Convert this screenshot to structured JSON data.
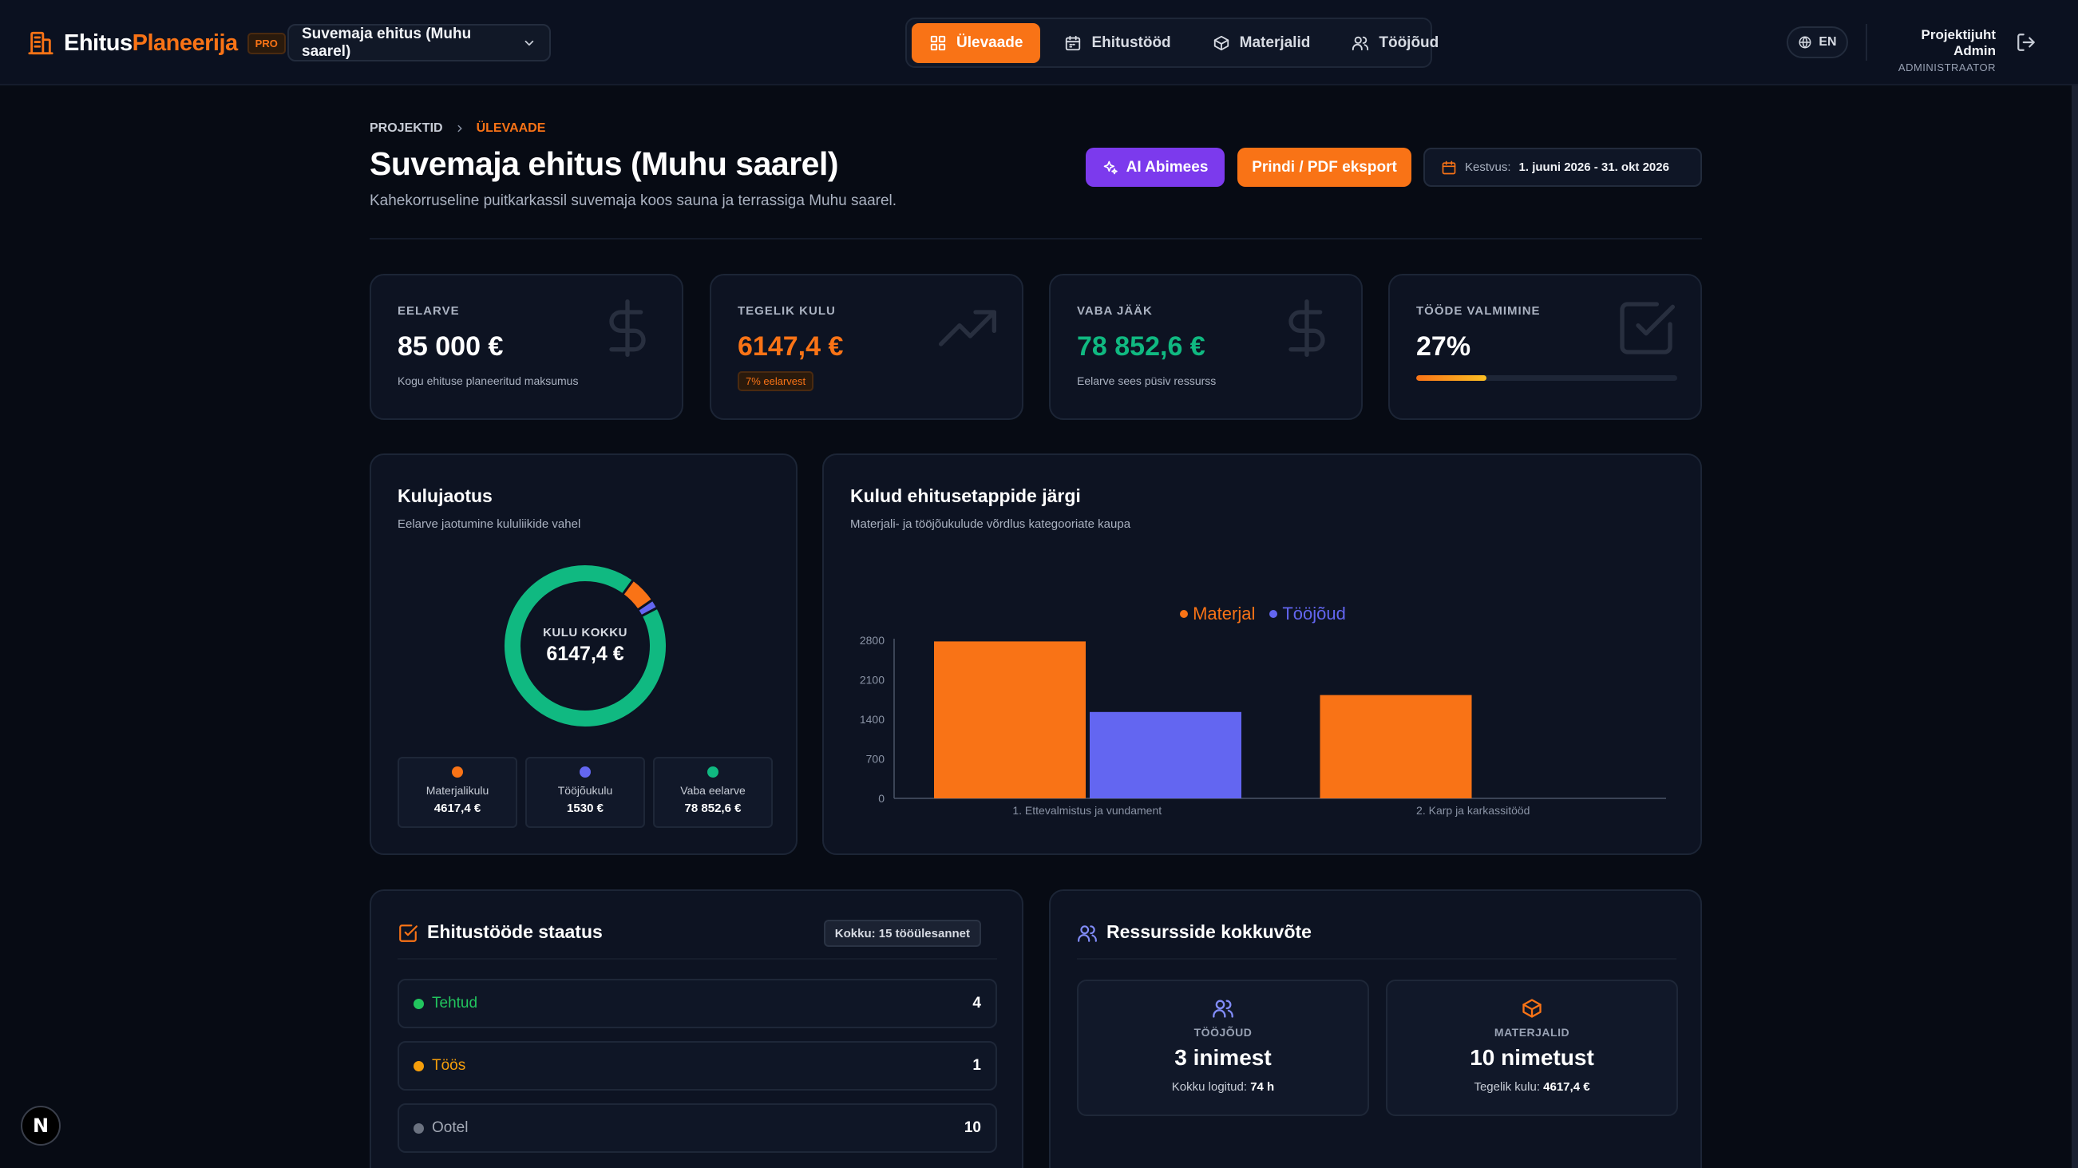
{
  "app": {
    "brand_part1": "Ehitus",
    "brand_part2": "Planeerija",
    "badge": "PRO",
    "project_selector": "Suvemaja ehitus (Muhu saarel)"
  },
  "nav": {
    "items": [
      {
        "label": "Ülevaade",
        "icon": "dashboard-grid-icon",
        "active": true
      },
      {
        "label": "Ehitustööd",
        "icon": "calendar-icon",
        "active": false
      },
      {
        "label": "Materjalid",
        "icon": "box-icon",
        "active": false
      },
      {
        "label": "Tööjõud",
        "icon": "users-icon",
        "active": false
      }
    ]
  },
  "header": {
    "language": "EN",
    "user_name": "Projektijuht Admin",
    "user_role": "ADMINISTRAATOR"
  },
  "page": {
    "breadcrumb_root": "PROJEKTID",
    "breadcrumb_current": "ÜLEVAADE",
    "title": "Suvemaja ehitus (Muhu saarel)",
    "subtitle": "Kahekorruseline puitkarkassil suvemaja koos sauna ja terrassiga Muhu saarel.",
    "ai_button": "AI Abimees",
    "pdf_button": "Prindi / PDF eksport",
    "duration_label": "Kestvus:",
    "duration_value": "1. juuni 2026 - 31. okt 2026"
  },
  "stats": {
    "budget": {
      "label": "EELARVE",
      "value": "85 000 €",
      "desc": "Kogu ehituse planeeritud maksumus"
    },
    "actual": {
      "label": "TEGELIK KULU",
      "value": "6147,4 €",
      "badge": "7% eelarvest"
    },
    "remaining": {
      "label": "VABA JÄÄK",
      "value": "78 852,6 €",
      "desc": "Eelarve sees püsiv ressurss"
    },
    "completion": {
      "label": "TÖÖDE VALMIMINE",
      "value": "27%",
      "progress": 0.27
    }
  },
  "cost_split": {
    "title": "Kulujaotus",
    "subtitle": "Eelarve jaotumine kululiikide vahel",
    "center_label": "KULU KOKKU",
    "center_value": "6147,4 €",
    "segments": [
      {
        "name": "Materjalikulu",
        "value_label": "4617,4 €",
        "value": 4617.4,
        "color": "#f97316"
      },
      {
        "name": "Tööjõukulu",
        "value_label": "1530 €",
        "value": 1530,
        "color": "#6366f1"
      },
      {
        "name": "Vaba eelarve",
        "value_label": "78 852,6 €",
        "value": 78852.6,
        "color": "#10b981"
      }
    ]
  },
  "stage_costs": {
    "title": "Kulud ehitusetappide järgi",
    "subtitle": "Materjali- ja tööjõukulude võrdlus kategooriate kaupa"
  },
  "chart_data": {
    "type": "bar",
    "title": "Kulud ehitusetappide järgi",
    "categories": [
      "1. Ettevalmistus ja vundament",
      "2. Karp ja karkassitööd"
    ],
    "series": [
      {
        "name": "Materjal",
        "values": [
          2780,
          1830
        ],
        "color": "#f97316"
      },
      {
        "name": "Tööjõud",
        "values": [
          1530,
          0
        ],
        "color": "#6366f1"
      }
    ],
    "yticks": [
      "0",
      "700",
      "1400",
      "2100",
      "2800"
    ],
    "ylim": [
      0,
      2800
    ],
    "legend": "top-center",
    "grid": false
  },
  "status": {
    "title": "Ehitustööde staatus",
    "total_badge": "Kokku: 15 tööülesannet",
    "rows": [
      {
        "label": "Tehtud",
        "count": "4",
        "color": "#22c55e"
      },
      {
        "label": "Töös",
        "count": "1",
        "color": "#f59e0b"
      },
      {
        "label": "Ootel",
        "count": "10",
        "color": "#6b7280"
      }
    ]
  },
  "resources": {
    "title": "Ressursside kokkuvõte",
    "labor": {
      "label": "TÖÖJÕUD",
      "value": "3 inimest",
      "desc_label": "Kokku logitud:",
      "desc_value": "74 h"
    },
    "materials": {
      "label": "MATERJALID",
      "value": "10 nimetust",
      "desc_label": "Tegelik kulu:",
      "desc_value": "4617,4 €"
    }
  },
  "floating_badge": "N"
}
